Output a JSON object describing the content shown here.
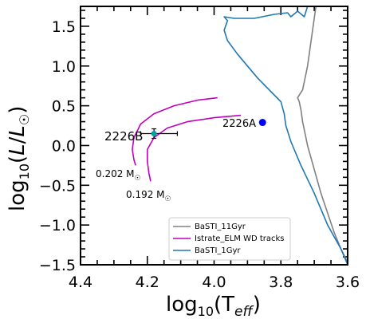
{
  "chart_data": {
    "type": "line",
    "xlabel_main": "log",
    "xlabel_sub": "10",
    "xlabel_paren_open": "(T",
    "xlabel_teff_sub": "eff",
    "xlabel_paren_close": ")",
    "ylabel_main": "log",
    "ylabel_sub": "10",
    "ylabel_paren_open": "(",
    "ylabel_L": "L",
    "ylabel_slash": "/",
    "ylabel_L2": "L",
    "ylabel_sun": "☉",
    "ylabel_paren_close": ")",
    "xlim": [
      4.4,
      3.6
    ],
    "ylim": [
      -1.5,
      1.75
    ],
    "xticks": [
      4.4,
      4.2,
      4.0,
      3.8,
      3.6
    ],
    "xtick_labels": [
      "4.4",
      "4.2",
      "4.0",
      "3.8",
      "3.6"
    ],
    "yticks": [
      -1.5,
      -1.0,
      -0.5,
      0.0,
      0.5,
      1.0,
      1.5
    ],
    "ytick_labels": [
      "−1.5",
      "−1.0",
      "−0.5",
      "0.0",
      "0.5",
      "1.0",
      "1.5"
    ],
    "legend": {
      "placement": "lower-right",
      "entries": [
        {
          "label": "BaSTI_11Gyr",
          "color": "#808080"
        },
        {
          "label": "Istrate_ELM WD tracks",
          "color": "#c000c0"
        },
        {
          "label": "BaSTI_1Gyr",
          "color": "#1f77b4"
        }
      ]
    },
    "series": [
      {
        "name": "BaSTI_11Gyr",
        "color": "#808080",
        "points": [
          [
            3.6,
            -1.47
          ],
          [
            3.62,
            -1.3
          ],
          [
            3.64,
            -1.1
          ],
          [
            3.66,
            -0.85
          ],
          [
            3.68,
            -0.6
          ],
          [
            3.7,
            -0.3
          ],
          [
            3.72,
            0.0
          ],
          [
            3.735,
            0.3
          ],
          [
            3.74,
            0.45
          ],
          [
            3.745,
            0.55
          ],
          [
            3.75,
            0.6
          ],
          [
            3.735,
            0.7
          ],
          [
            3.72,
            1.0
          ],
          [
            3.71,
            1.3
          ],
          [
            3.7,
            1.6
          ],
          [
            3.695,
            1.75
          ]
        ]
      },
      {
        "name": "BaSTI_1Gyr",
        "color": "#1f77b4",
        "points": [
          [
            3.6,
            -1.5
          ],
          [
            3.62,
            -1.3
          ],
          [
            3.66,
            -1.0
          ],
          [
            3.7,
            -0.6
          ],
          [
            3.74,
            -0.25
          ],
          [
            3.77,
            0.05
          ],
          [
            3.785,
            0.25
          ],
          [
            3.79,
            0.4
          ],
          [
            3.8,
            0.55
          ],
          [
            3.87,
            0.85
          ],
          [
            3.93,
            1.15
          ],
          [
            3.96,
            1.32
          ],
          [
            3.97,
            1.45
          ],
          [
            3.96,
            1.57
          ],
          [
            3.97,
            1.62
          ],
          [
            3.94,
            1.6
          ],
          [
            3.88,
            1.6
          ],
          [
            3.82,
            1.65
          ],
          [
            3.78,
            1.67
          ],
          [
            3.77,
            1.62
          ],
          [
            3.75,
            1.69
          ],
          [
            3.73,
            1.62
          ],
          [
            3.72,
            1.75
          ]
        ]
      },
      {
        "name": "Istrate_ELM WD tracks (0.202)",
        "color": "#c000c0",
        "points": [
          [
            3.99,
            0.6
          ],
          [
            4.05,
            0.57
          ],
          [
            4.12,
            0.5
          ],
          [
            4.18,
            0.4
          ],
          [
            4.22,
            0.27
          ],
          [
            4.24,
            0.1
          ],
          [
            4.245,
            -0.05
          ],
          [
            4.24,
            -0.18
          ],
          [
            4.235,
            -0.25
          ]
        ]
      },
      {
        "name": "Istrate_ELM WD tracks (0.192)",
        "color": "#c000c0",
        "points": [
          [
            3.92,
            0.38
          ],
          [
            4.0,
            0.35
          ],
          [
            4.08,
            0.3
          ],
          [
            4.14,
            0.22
          ],
          [
            4.18,
            0.1
          ],
          [
            4.2,
            -0.05
          ],
          [
            4.2,
            -0.2
          ],
          [
            4.195,
            -0.35
          ],
          [
            4.19,
            -0.45
          ]
        ]
      }
    ],
    "points": [
      {
        "label": "2226A",
        "x": 3.855,
        "y": 0.29,
        "color": "#0000ff"
      },
      {
        "label": "2226B",
        "x": 4.18,
        "y": 0.15,
        "color": "#00a0a0",
        "xerr": [
          0.04,
          0.07
        ],
        "yerr": 0.06
      }
    ],
    "annotations": [
      {
        "text_main": "0.202 M",
        "text_sub": "☉",
        "x": 4.34,
        "y": -0.34
      },
      {
        "text_main": "0.192 M",
        "text_sub": "☉",
        "x": 4.29,
        "y": -0.6
      }
    ]
  }
}
